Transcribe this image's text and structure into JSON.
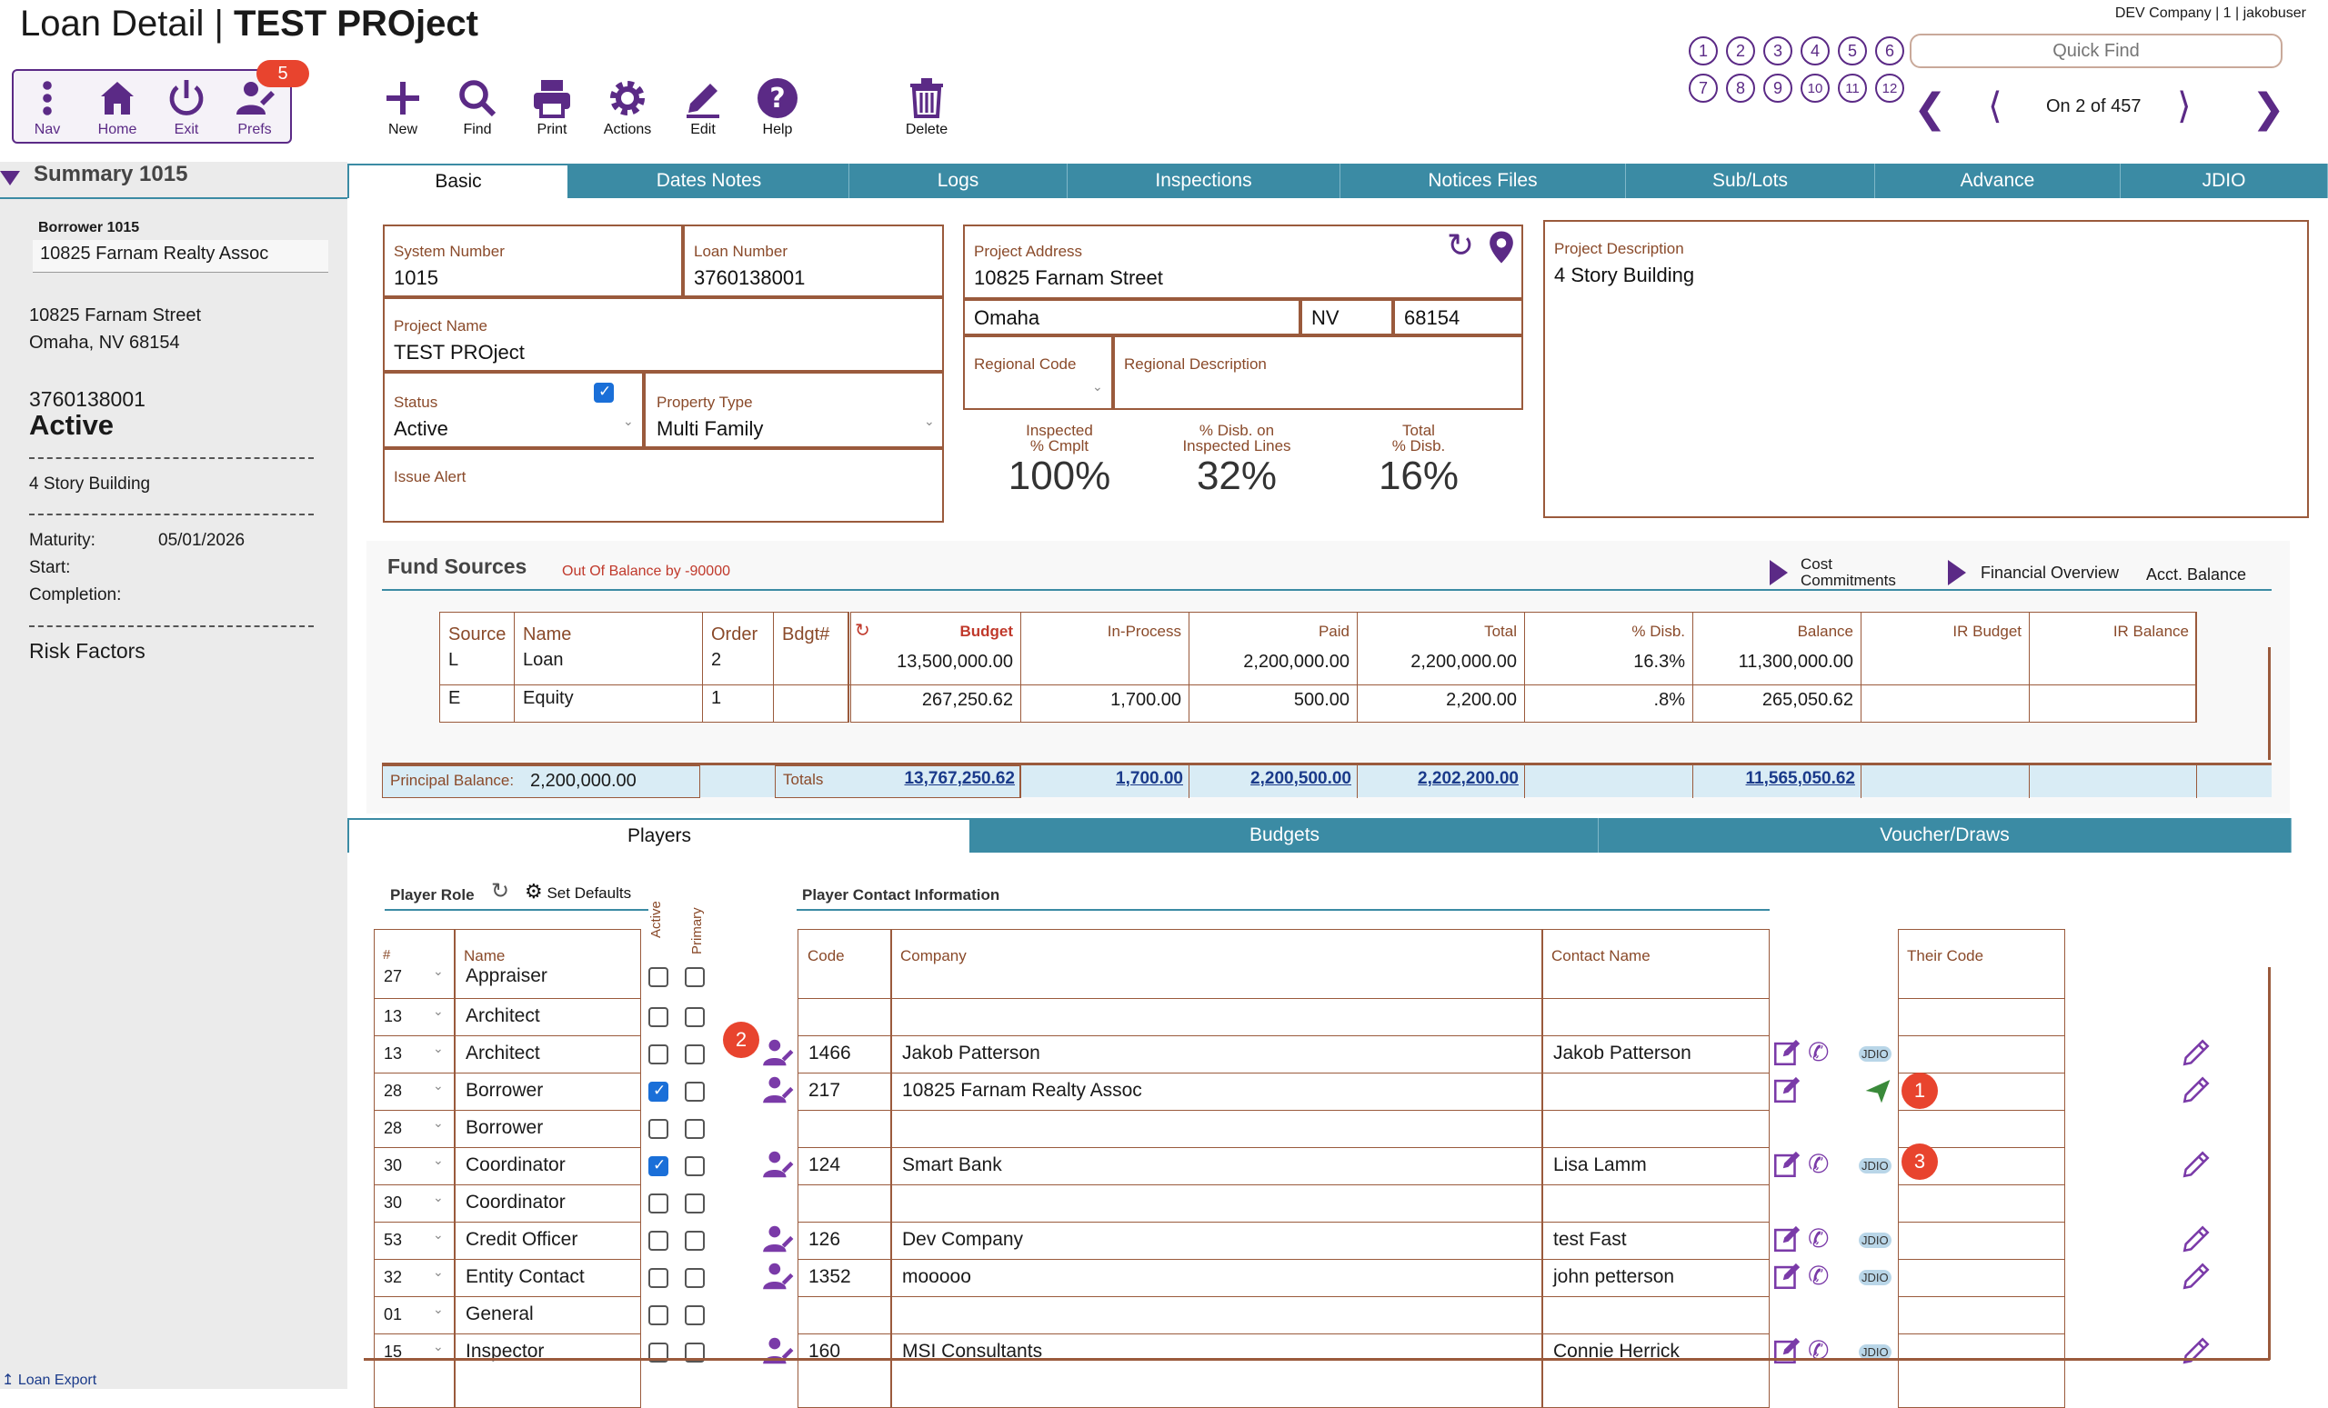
{
  "header": {
    "title_prefix": "Loan Detail",
    "title_sep": "|",
    "title_main": "TEST PROject",
    "company_info": "DEV Company | 1 | jakobuser",
    "quick_find_placeholder": "Quick Find",
    "record_pos": "On 2 of 457",
    "circles_row1": [
      "1",
      "2",
      "3",
      "4",
      "5",
      "6"
    ],
    "circles_row2": [
      "7",
      "8",
      "9",
      "10",
      "11",
      "12"
    ]
  },
  "nav": {
    "nav_label": "Nav",
    "home_label": "Home",
    "exit_label": "Exit",
    "prefs_label": "Prefs",
    "prefs_badge": "5"
  },
  "toolbar": {
    "new": "New",
    "find": "Find",
    "print": "Print",
    "actions": "Actions",
    "edit": "Edit",
    "help": "Help",
    "delete": "Delete"
  },
  "sidebar": {
    "summary_title": "Summary 1015",
    "borrower_label": "Borrower 1015",
    "borrower_name": "10825 Farnam Realty Assoc",
    "address1": "10825 Farnam Street",
    "address2": "Omaha, NV  68154",
    "loan_number": "3760138001",
    "status": "Active",
    "description": "4 Story Building",
    "maturity_label": "Maturity:",
    "maturity_value": "05/01/2026",
    "start_label": "Start:",
    "completion_label": "Completion:",
    "risk_factors": "Risk Factors",
    "loan_export": "Loan Export"
  },
  "tabs": [
    "Basic",
    "Dates Notes",
    "Logs",
    "Inspections",
    "Notices Files",
    "Sub/Lots",
    "Advance",
    "JDIO"
  ],
  "basic": {
    "system_number_label": "System Number",
    "system_number": "1015",
    "loan_number_label": "Loan Number",
    "loan_number": "3760138001",
    "project_name_label": "Project Name",
    "project_name": "TEST PROject",
    "status_label": "Status",
    "status": "Active",
    "property_type_label": "Property Type",
    "property_type": "Multi Family",
    "issue_alert_label": "Issue Alert",
    "project_address_label": "Project Address",
    "project_address": "10825 Farnam Street",
    "city": "Omaha",
    "state": "NV",
    "zip": "68154",
    "regional_code_label": "Regional Code",
    "regional_desc_label": "Regional Description",
    "project_desc_label": "Project Description",
    "project_desc": "4 Story Building",
    "inspected_label1": "Inspected",
    "inspected_label2": "% Cmplt",
    "inspected_value": "100%",
    "disb_insp_label1": "% Disb. on",
    "disb_insp_label2": "Inspected Lines",
    "disb_insp_value": "32%",
    "total_disb_label1": "Total",
    "total_disb_label2": "% Disb.",
    "total_disb_value": "16%"
  },
  "fund_sources": {
    "title": "Fund Sources",
    "out_of_balance": "Out Of Balance by -90000",
    "cost_commitments_1": "Cost",
    "cost_commitments_2": "Commitments",
    "financial_overview": "Financial Overview",
    "acct_balance": "Acct. Balance",
    "headers": {
      "source": "Source",
      "name": "Name",
      "order": "Order",
      "bdgt": "Bdgt#",
      "budget": "Budget",
      "in_process": "In-Process",
      "paid": "Paid",
      "total": "Total",
      "pct_disb": "% Disb.",
      "balance": "Balance",
      "ir_budget": "IR Budget",
      "ir_balance": "IR Balance"
    },
    "rows": [
      {
        "source": "L",
        "name": "Loan",
        "order": "2",
        "budget": "13,500,000.00",
        "in_process": "",
        "paid": "2,200,000.00",
        "total": "2,200,000.00",
        "pct": "16.3%",
        "balance": "11,300,000.00"
      },
      {
        "source": "E",
        "name": "Equity",
        "order": "1",
        "budget": "267,250.62",
        "in_process": "1,700.00",
        "paid": "500.00",
        "total": "2,200.00",
        "pct": ".8%",
        "balance": "265,050.62"
      }
    ],
    "principal_label": "Principal Balance:",
    "principal_value": "2,200,000.00",
    "totals_label": "Totals",
    "totals": {
      "budget": "13,767,250.62",
      "in_process": "1,700.00",
      "paid": "2,200,500.00",
      "total": "2,202,200.00",
      "balance": "11,565,050.62"
    }
  },
  "lower_tabs": [
    "Players",
    "Budgets",
    "Voucher/Draws"
  ],
  "players": {
    "player_role": "Player Role",
    "set_defaults": "Set Defaults",
    "active_hdr": "Active",
    "primary_hdr": "Primary",
    "contact_info": "Player Contact Information",
    "num_hdr": "#",
    "name_hdr": "Name",
    "code_hdr": "Code",
    "company_hdr": "Company",
    "contact_hdr": "Contact Name",
    "their_code_hdr": "Their Code",
    "jdio": "JDIO",
    "rows": [
      {
        "num": "27",
        "name": "Appraiser",
        "active": false,
        "code": "",
        "company": "",
        "contact": ""
      },
      {
        "num": "13",
        "name": "Architect",
        "active": false,
        "code": "",
        "company": "",
        "contact": ""
      },
      {
        "num": "13",
        "name": "Architect",
        "active": false,
        "code": "1466",
        "company": "Jakob Patterson",
        "contact": "Jakob Patterson"
      },
      {
        "num": "28",
        "name": "Borrower",
        "active": true,
        "code": "217",
        "company": "10825 Farnam Realty Assoc",
        "contact": ""
      },
      {
        "num": "28",
        "name": "Borrower",
        "active": false,
        "code": "",
        "company": "",
        "contact": ""
      },
      {
        "num": "30",
        "name": "Coordinator",
        "active": true,
        "code": "124",
        "company": "Smart Bank",
        "contact": "Lisa Lamm"
      },
      {
        "num": "30",
        "name": "Coordinator",
        "active": false,
        "code": "",
        "company": "",
        "contact": ""
      },
      {
        "num": "53",
        "name": "Credit Officer",
        "active": false,
        "code": "126",
        "company": "Dev Company",
        "contact": "test Fast"
      },
      {
        "num": "32",
        "name": "Entity Contact",
        "active": false,
        "code": "1352",
        "company": "mooooo",
        "contact": "john petterson"
      },
      {
        "num": "01",
        "name": "General",
        "active": false,
        "code": "",
        "company": "",
        "contact": ""
      },
      {
        "num": "15",
        "name": "Inspector",
        "active": false,
        "code": "160",
        "company": "MSI Consultants",
        "contact": "Connie Herrick"
      }
    ],
    "markers": [
      "1",
      "2",
      "3"
    ]
  },
  "colors": {
    "accent": "#5b2a86",
    "tab": "#3b8ba4",
    "border": "#9a5a3c",
    "marker": "#e8442e"
  }
}
